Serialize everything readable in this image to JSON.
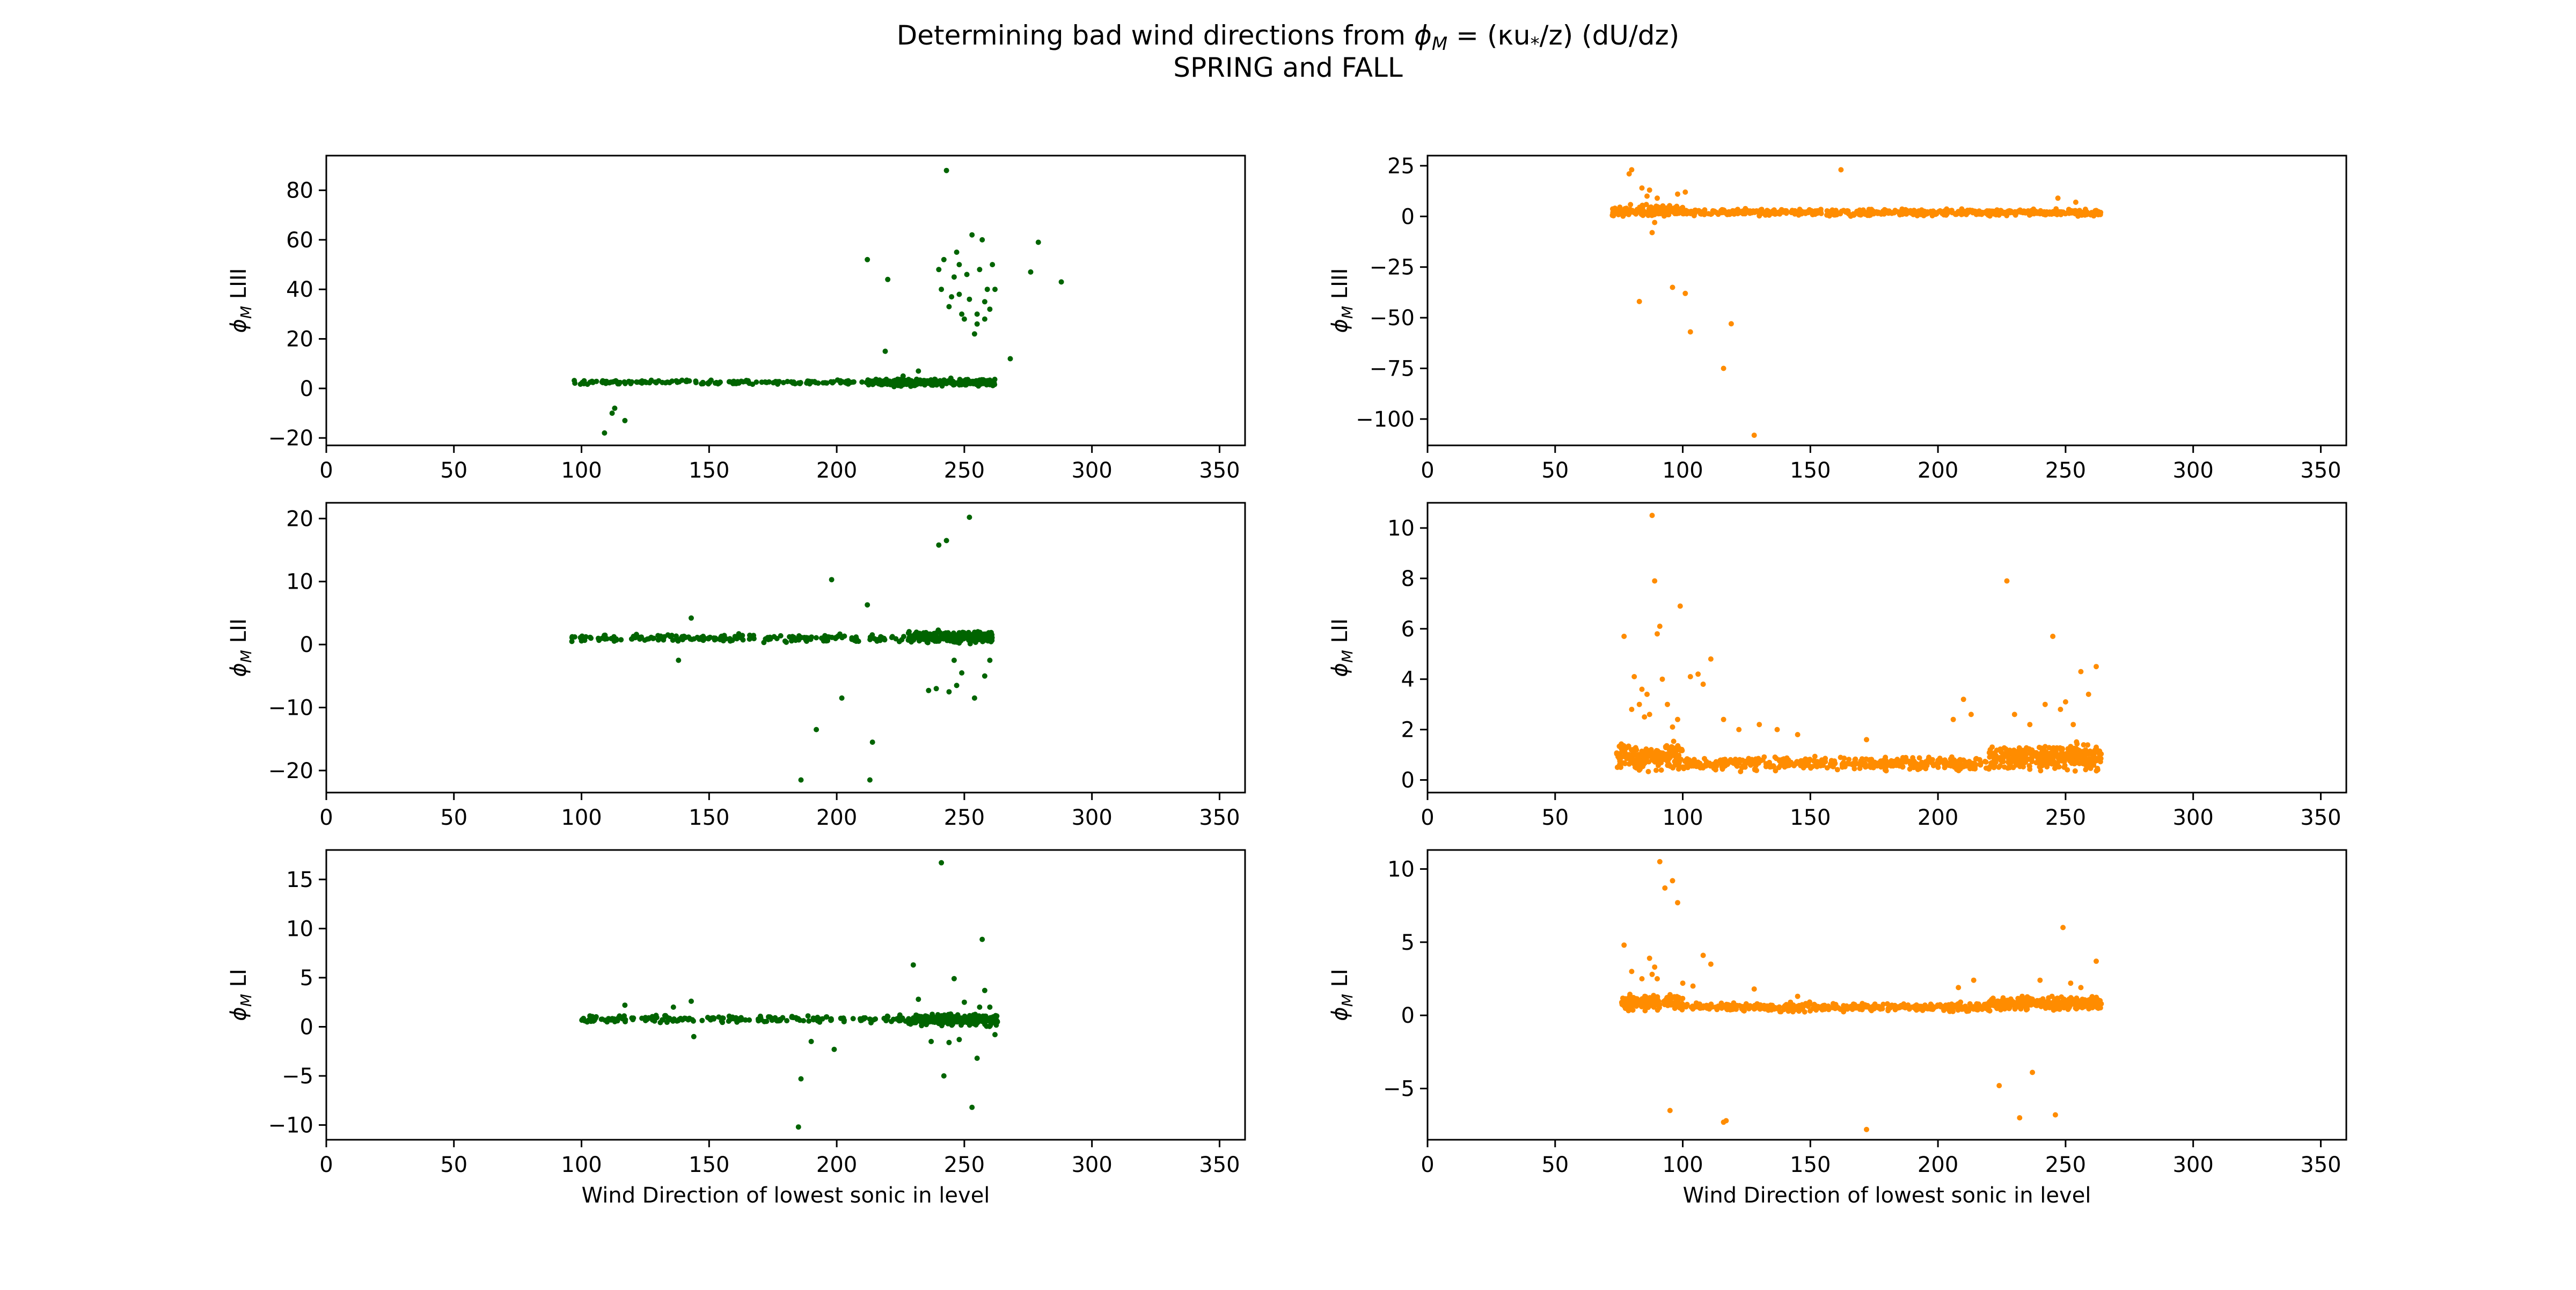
{
  "figure": {
    "title_line1_prefix": "Determining bad wind directions from ",
    "title_line1_formula": "ϕ",
    "title_line1_formula_sub": "M",
    "title_line1_suffix": " = (κu",
    "title_line1_ustar_sub": "*",
    "title_line1_end": "/z) (dU/dz)",
    "title_line2": "SPRING and FALL"
  },
  "colors": {
    "spring": "#006400",
    "fall": "#ff8c00"
  },
  "chart_data": [
    {
      "type": "scatter",
      "panel": "spring-LIII",
      "xlabel": "",
      "ylabel_symbol": "ϕ",
      "ylabel_sub": "M",
      "ylabel_level": "LIII",
      "xlim": [
        0,
        360
      ],
      "ylim": [
        -23,
        94
      ],
      "xticks": [
        0,
        50,
        100,
        150,
        200,
        250,
        300,
        350
      ],
      "yticks": [
        -20,
        0,
        20,
        40,
        60,
        80
      ],
      "color_key": "spring",
      "dense_bands": [
        {
          "x": [
            97,
            212
          ],
          "y_center": 2.5,
          "y_spread": 1.2,
          "n": 160
        },
        {
          "x": [
            212,
            262
          ],
          "y_center": 2.5,
          "y_spread": 2.0,
          "n": 260
        }
      ],
      "outliers": [
        [
          109,
          -18
        ],
        [
          112,
          -10
        ],
        [
          113,
          -8
        ],
        [
          117,
          -13
        ],
        [
          212,
          52
        ],
        [
          219,
          15
        ],
        [
          220,
          44
        ],
        [
          243,
          88
        ],
        [
          240,
          48
        ],
        [
          242,
          52
        ],
        [
          244,
          33
        ],
        [
          245,
          37
        ],
        [
          246,
          45
        ],
        [
          247,
          55
        ],
        [
          248,
          50
        ],
        [
          249,
          30
        ],
        [
          250,
          28
        ],
        [
          251,
          46
        ],
        [
          252,
          36
        ],
        [
          253,
          62
        ],
        [
          254,
          22
        ],
        [
          255,
          30
        ],
        [
          256,
          48
        ],
        [
          257,
          60
        ],
        [
          258,
          35
        ],
        [
          259,
          40
        ],
        [
          260,
          32
        ],
        [
          261,
          50
        ],
        [
          262,
          40
        ],
        [
          255,
          26
        ],
        [
          258,
          28
        ],
        [
          248,
          38
        ],
        [
          241,
          40
        ],
        [
          268,
          12
        ],
        [
          276,
          47
        ],
        [
          279,
          59
        ],
        [
          288,
          43
        ],
        [
          226,
          5
        ],
        [
          232,
          7
        ]
      ]
    },
    {
      "type": "scatter",
      "panel": "fall-LIII",
      "xlabel": "",
      "ylabel_symbol": "ϕ",
      "ylabel_sub": "M",
      "ylabel_level": "LIII",
      "xlim": [
        0,
        360
      ],
      "ylim": [
        -113,
        30
      ],
      "xticks": [
        0,
        50,
        100,
        150,
        200,
        250,
        300,
        350
      ],
      "yticks": [
        -100,
        -75,
        -50,
        -25,
        0,
        25
      ],
      "color_key": "fall",
      "dense_bands": [
        {
          "x": [
            72,
            100
          ],
          "y_center": 2.5,
          "y_spread": 4.0,
          "n": 140
        },
        {
          "x": [
            100,
            264
          ],
          "y_center": 2.0,
          "y_spread": 2.0,
          "n": 600
        }
      ],
      "outliers": [
        [
          79,
          21
        ],
        [
          80,
          23
        ],
        [
          84,
          14
        ],
        [
          86,
          10
        ],
        [
          87,
          13
        ],
        [
          88,
          -8
        ],
        [
          89,
          -3
        ],
        [
          90,
          9
        ],
        [
          98,
          11
        ],
        [
          101,
          12
        ],
        [
          83,
          -42
        ],
        [
          96,
          -35
        ],
        [
          101,
          -38
        ],
        [
          103,
          -57
        ],
        [
          116,
          -75
        ],
        [
          119,
          -53
        ],
        [
          128,
          -108
        ],
        [
          162,
          23
        ],
        [
          247,
          9
        ],
        [
          254,
          7
        ]
      ]
    },
    {
      "type": "scatter",
      "panel": "spring-LII",
      "xlabel": "",
      "ylabel_symbol": "ϕ",
      "ylabel_sub": "M",
      "ylabel_level": "LII",
      "xlim": [
        0,
        360
      ],
      "ylim": [
        -23.5,
        22.5
      ],
      "xticks": [
        0,
        50,
        100,
        150,
        200,
        250,
        300,
        350
      ],
      "yticks": [
        -20,
        -10,
        0,
        10,
        20
      ],
      "color_key": "spring",
      "dense_bands": [
        {
          "x": [
            96,
            228
          ],
          "y_center": 1.0,
          "y_spread": 0.8,
          "n": 190
        },
        {
          "x": [
            228,
            261
          ],
          "y_center": 1.2,
          "y_spread": 1.3,
          "n": 260
        }
      ],
      "outliers": [
        [
          138,
          -2.5
        ],
        [
          143,
          4.2
        ],
        [
          186,
          -21.5
        ],
        [
          192,
          -13.5
        ],
        [
          198,
          10.3
        ],
        [
          202,
          -8.5
        ],
        [
          212,
          6.3
        ],
        [
          213,
          -21.5
        ],
        [
          214,
          -15.5
        ],
        [
          236,
          -7.3
        ],
        [
          239,
          -7.0
        ],
        [
          240,
          15.8
        ],
        [
          243,
          16.5
        ],
        [
          244,
          -7.5
        ],
        [
          246,
          -2.5
        ],
        [
          247,
          -6.5
        ],
        [
          249,
          -4.5
        ],
        [
          252,
          20.2
        ],
        [
          254,
          -8.5
        ],
        [
          258,
          -5.0
        ],
        [
          260,
          -2.5
        ]
      ]
    },
    {
      "type": "scatter",
      "panel": "fall-LII",
      "xlabel": "",
      "ylabel_symbol": "ϕ",
      "ylabel_sub": "M",
      "ylabel_level": "LII",
      "xlim": [
        0,
        360
      ],
      "ylim": [
        -0.5,
        11
      ],
      "xticks": [
        0,
        50,
        100,
        150,
        200,
        250,
        300,
        350
      ],
      "yticks": [
        0,
        2,
        4,
        6,
        8,
        10
      ],
      "color_key": "fall",
      "dense_bands": [
        {
          "x": [
            74,
            100
          ],
          "y_center": 0.9,
          "y_spread": 0.7,
          "n": 200
        },
        {
          "x": [
            100,
            220
          ],
          "y_center": 0.65,
          "y_spread": 0.35,
          "n": 420
        },
        {
          "x": [
            220,
            264
          ],
          "y_center": 0.9,
          "y_spread": 0.7,
          "n": 340
        }
      ],
      "outliers": [
        [
          77,
          5.7
        ],
        [
          80,
          2.8
        ],
        [
          81,
          4.1
        ],
        [
          83,
          3.0
        ],
        [
          84,
          3.6
        ],
        [
          85,
          2.5
        ],
        [
          86,
          3.4
        ],
        [
          87,
          2.6
        ],
        [
          88,
          10.5
        ],
        [
          89,
          7.9
        ],
        [
          90,
          5.8
        ],
        [
          91,
          6.1
        ],
        [
          92,
          4.0
        ],
        [
          94,
          3.0
        ],
        [
          96,
          2.1
        ],
        [
          98,
          2.4
        ],
        [
          99,
          6.9
        ],
        [
          103,
          4.1
        ],
        [
          106,
          4.2
        ],
        [
          108,
          3.8
        ],
        [
          111,
          4.8
        ],
        [
          116,
          2.4
        ],
        [
          122,
          2.0
        ],
        [
          130,
          2.2
        ],
        [
          137,
          2.0
        ],
        [
          145,
          1.8
        ],
        [
          172,
          1.6
        ],
        [
          206,
          2.4
        ],
        [
          210,
          3.2
        ],
        [
          213,
          2.6
        ],
        [
          227,
          7.9
        ],
        [
          230,
          2.6
        ],
        [
          236,
          2.2
        ],
        [
          242,
          3.0
        ],
        [
          245,
          5.7
        ],
        [
          248,
          2.8
        ],
        [
          250,
          3.1
        ],
        [
          253,
          2.2
        ],
        [
          256,
          4.3
        ],
        [
          259,
          3.4
        ],
        [
          262,
          4.5
        ]
      ]
    },
    {
      "type": "scatter",
      "panel": "spring-LI",
      "xlabel": "Wind Direction of lowest sonic in level",
      "ylabel_symbol": "ϕ",
      "ylabel_sub": "M",
      "ylabel_level": "LI",
      "xlim": [
        0,
        360
      ],
      "ylim": [
        -11.5,
        18
      ],
      "xticks": [
        0,
        50,
        100,
        150,
        200,
        250,
        300,
        350
      ],
      "yticks": [
        -10,
        -5,
        0,
        5,
        10,
        15
      ],
      "color_key": "spring",
      "dense_bands": [
        {
          "x": [
            100,
            228
          ],
          "y_center": 0.8,
          "y_spread": 0.5,
          "n": 190
        },
        {
          "x": [
            228,
            263
          ],
          "y_center": 0.7,
          "y_spread": 0.8,
          "n": 260
        }
      ],
      "outliers": [
        [
          117,
          2.2
        ],
        [
          136,
          2.0
        ],
        [
          143,
          2.6
        ],
        [
          144,
          -1.0
        ],
        [
          185,
          -10.2
        ],
        [
          186,
          -5.3
        ],
        [
          190,
          -1.5
        ],
        [
          199,
          -2.3
        ],
        [
          230,
          6.3
        ],
        [
          232,
          2.8
        ],
        [
          237,
          -1.5
        ],
        [
          241,
          16.7
        ],
        [
          242,
          -5.0
        ],
        [
          244,
          -1.6
        ],
        [
          246,
          4.9
        ],
        [
          248,
          -1.3
        ],
        [
          250,
          2.5
        ],
        [
          253,
          -8.2
        ],
        [
          255,
          -3.2
        ],
        [
          256,
          2.0
        ],
        [
          257,
          8.9
        ],
        [
          258,
          3.7
        ],
        [
          262,
          -0.8
        ],
        [
          260,
          2.0
        ]
      ]
    },
    {
      "type": "scatter",
      "panel": "fall-LI",
      "xlabel": "Wind Direction of lowest sonic in level",
      "ylabel_symbol": "ϕ",
      "ylabel_sub": "M",
      "ylabel_level": "LI",
      "xlim": [
        0,
        360
      ],
      "ylim": [
        -8.5,
        11.3
      ],
      "xticks": [
        0,
        50,
        100,
        150,
        200,
        250,
        300,
        350
      ],
      "yticks": [
        -5,
        0,
        5,
        10
      ],
      "color_key": "fall",
      "dense_bands": [
        {
          "x": [
            76,
            100
          ],
          "y_center": 0.9,
          "y_spread": 0.7,
          "n": 180
        },
        {
          "x": [
            100,
            220
          ],
          "y_center": 0.55,
          "y_spread": 0.4,
          "n": 420
        },
        {
          "x": [
            220,
            264
          ],
          "y_center": 0.8,
          "y_spread": 0.6,
          "n": 340
        }
      ],
      "outliers": [
        [
          77,
          4.8
        ],
        [
          80,
          3.0
        ],
        [
          84,
          2.5
        ],
        [
          87,
          3.9
        ],
        [
          88,
          2.8
        ],
        [
          89,
          3.3
        ],
        [
          90,
          2.5
        ],
        [
          91,
          10.5
        ],
        [
          93,
          8.7
        ],
        [
          96,
          9.2
        ],
        [
          98,
          7.7
        ],
        [
          95,
          -6.5
        ],
        [
          100,
          2.2
        ],
        [
          104,
          2.0
        ],
        [
          108,
          4.1
        ],
        [
          111,
          3.5
        ],
        [
          116,
          -7.3
        ],
        [
          117,
          -7.2
        ],
        [
          128,
          1.8
        ],
        [
          145,
          1.3
        ],
        [
          172,
          -7.8
        ],
        [
          208,
          1.9
        ],
        [
          214,
          2.4
        ],
        [
          224,
          -4.8
        ],
        [
          232,
          -7.0
        ],
        [
          237,
          -3.9
        ],
        [
          240,
          2.4
        ],
        [
          246,
          -6.8
        ],
        [
          249,
          6.0
        ],
        [
          252,
          2.2
        ],
        [
          256,
          1.9
        ],
        [
          262,
          3.7
        ]
      ]
    }
  ]
}
